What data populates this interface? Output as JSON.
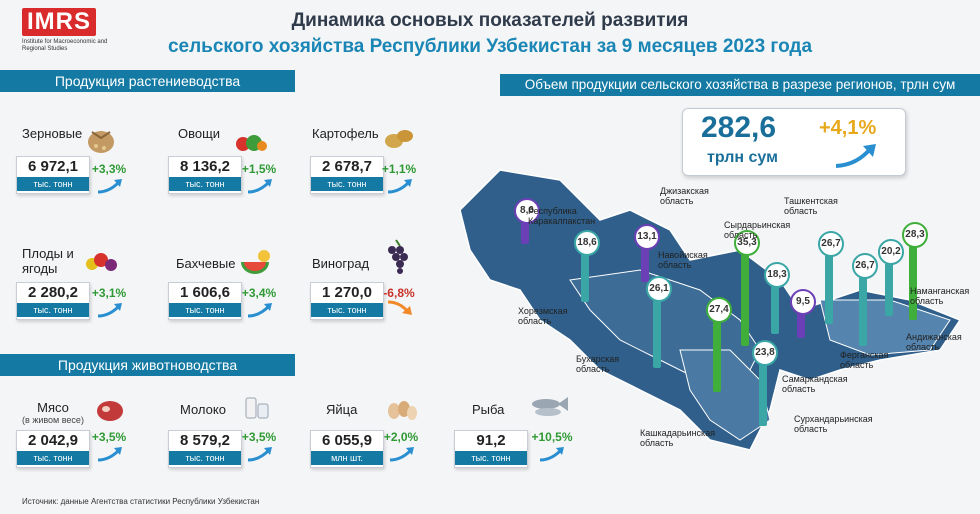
{
  "logo": {
    "mark": "IMRS",
    "subtitle": "Institute for Macroeconomic and Regional Studies"
  },
  "title": {
    "line1": "Динамика основых показателей развития",
    "line2": "сельского хозяйства Республики Узбекистан за 9 месяцев 2023 года"
  },
  "crops": {
    "heading": "Продукция растениеводства",
    "items": [
      {
        "name": "Зерновые",
        "value": "6 972,1",
        "unit": "тыс. тонн",
        "change": "+3,3%",
        "trend": "up",
        "icon": "grain-sack-icon"
      },
      {
        "name": "Овощи",
        "value": "8 136,2",
        "unit": "тыс. тонн",
        "change": "+1,5%",
        "trend": "up",
        "icon": "vegetables-icon"
      },
      {
        "name": "Картофель",
        "value": "2 678,7",
        "unit": "тыс. тонн",
        "change": "+1,1%",
        "trend": "up",
        "icon": "potato-icon"
      },
      {
        "name": "Плоды и ягоды",
        "value": "2 280,2",
        "unit": "тыс. тонн",
        "change": "+3,1%",
        "trend": "up",
        "icon": "fruits-icon"
      },
      {
        "name": "Бахчевые",
        "value": "1 606,6",
        "unit": "тыс. тонн",
        "change": "+3,4%",
        "trend": "up",
        "icon": "melon-icon"
      },
      {
        "name": "Виноград",
        "value": "1 270,0",
        "unit": "тыс. тонн",
        "change": "-6,8%",
        "trend": "down",
        "icon": "grapes-icon"
      }
    ]
  },
  "livestock": {
    "heading": "Продукция животноводства",
    "items": [
      {
        "name": "Мясо",
        "note": "(в живом весе)",
        "value": "2 042,9",
        "unit": "тыс. тонн",
        "change": "+3,5%",
        "trend": "up",
        "icon": "meat-icon"
      },
      {
        "name": "Молоко",
        "value": "8 579,2",
        "unit": "тыс. тонн",
        "change": "+3,5%",
        "trend": "up",
        "icon": "milk-icon"
      },
      {
        "name": "Яйца",
        "value": "6 055,9",
        "unit": "млн шт.",
        "change": "+2,0%",
        "trend": "up",
        "icon": "eggs-icon"
      },
      {
        "name": "Рыба",
        "value": "91,2",
        "unit": "тыс. тонн",
        "change": "+10,5%",
        "trend": "up",
        "icon": "fish-icon"
      }
    ]
  },
  "regions": {
    "heading": "Объем продукции сельского хозяйства в разрезе регионов, трлн сум",
    "total_value": "282,6",
    "total_unit": "трлн сум",
    "total_change": "+4,1%",
    "items": [
      {
        "name": "Республика Каракалпакстан",
        "value": "8,6",
        "color": "#6b3fb5"
      },
      {
        "name": "Хорезмская область",
        "value": "18,6",
        "color": "#3aa6a6"
      },
      {
        "name": "Навойиская область",
        "value": "13,1",
        "color": "#6b3fb5"
      },
      {
        "name": "Бухарская область",
        "value": "26,1",
        "color": "#3aa6a6"
      },
      {
        "name": "Кашкадарьинская область",
        "value": "27,4",
        "color": "#3fae3a"
      },
      {
        "name": "Джизакская область",
        "value": "35,3",
        "color": "#3fae3a"
      },
      {
        "name": "Самаркандская область",
        "value": "23,8",
        "color": "#3aa6a6"
      },
      {
        "name": "Сырдарьинская область",
        "value": "18,3",
        "color": "#3aa6a6"
      },
      {
        "name": "Сурхандарьинская область",
        "value": "9,5",
        "color": "#6b3fb5"
      },
      {
        "name": "Ташкентская область",
        "value": "26,7",
        "color": "#3aa6a6"
      },
      {
        "name": "Ферганская область",
        "value": "26,7",
        "color": "#3aa6a6"
      },
      {
        "name": "Андижанская область",
        "value": "20,2",
        "color": "#3aa6a6"
      },
      {
        "name": "Наманганская область",
        "value": "28,3",
        "color": "#3fae3a"
      }
    ]
  },
  "source": "Источник: данные Агентства статистики Республики Узбекистан"
}
